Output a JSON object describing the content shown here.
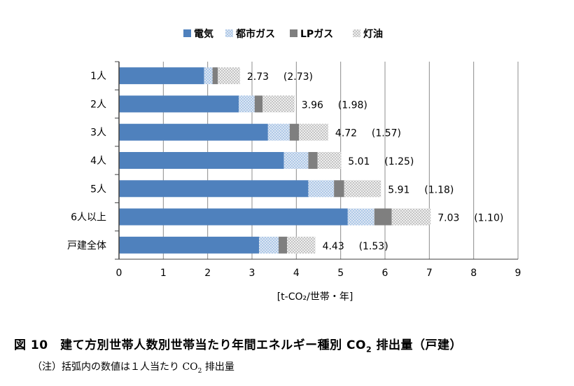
{
  "chart_data": {
    "type": "bar",
    "orientation": "horizontal",
    "stacked": true,
    "categories": [
      "1人",
      "2人",
      "3人",
      "4人",
      "5人",
      "6人以上",
      "戸建全体"
    ],
    "series": [
      {
        "name": "電気",
        "color": "#4F81BD",
        "pattern": "solid",
        "values": [
          1.92,
          2.7,
          3.36,
          3.72,
          4.27,
          5.16,
          3.16
        ]
      },
      {
        "name": "都市ガス",
        "color": "#C6D9F1",
        "pattern": "dots-light-blue",
        "values": [
          0.19,
          0.36,
          0.49,
          0.55,
          0.58,
          0.6,
          0.44
        ]
      },
      {
        "name": "LPガス",
        "color": "#7F7F7F",
        "pattern": "solid",
        "values": [
          0.12,
          0.18,
          0.21,
          0.21,
          0.23,
          0.39,
          0.19
        ]
      },
      {
        "name": "灯油",
        "color": "#D9D9D9",
        "pattern": "dots-gray",
        "values": [
          0.5,
          0.72,
          0.66,
          0.53,
          0.83,
          0.88,
          0.64
        ]
      }
    ],
    "totals_labels": [
      "2.73",
      "3.96",
      "4.72",
      "5.01",
      "5.91",
      "7.03",
      "4.43"
    ],
    "per_person_labels": [
      "(2.73)",
      "(1.98)",
      "(1.57)",
      "(1.25)",
      "(1.18)",
      "(1.10)",
      "(1.53)"
    ],
    "xlim": [
      0,
      9
    ],
    "x_ticks": [
      "0",
      "1",
      "2",
      "3",
      "4",
      "5",
      "6",
      "7",
      "8",
      "9"
    ],
    "xlabel": "[t-CO₂/世帯・年]",
    "grid": true,
    "legend_position": "top"
  },
  "caption": {
    "figure_no": "図 10",
    "title_main": "建て方別世帯人数別世帯当たり年間エネルギー種別 CO",
    "title_sub": "2",
    "title_tail": " 排出量（戸建）"
  },
  "note": {
    "text_main": "（注）括弧内の数値は１人当たり CO",
    "text_sub": "2",
    "text_tail": " 排出量"
  }
}
